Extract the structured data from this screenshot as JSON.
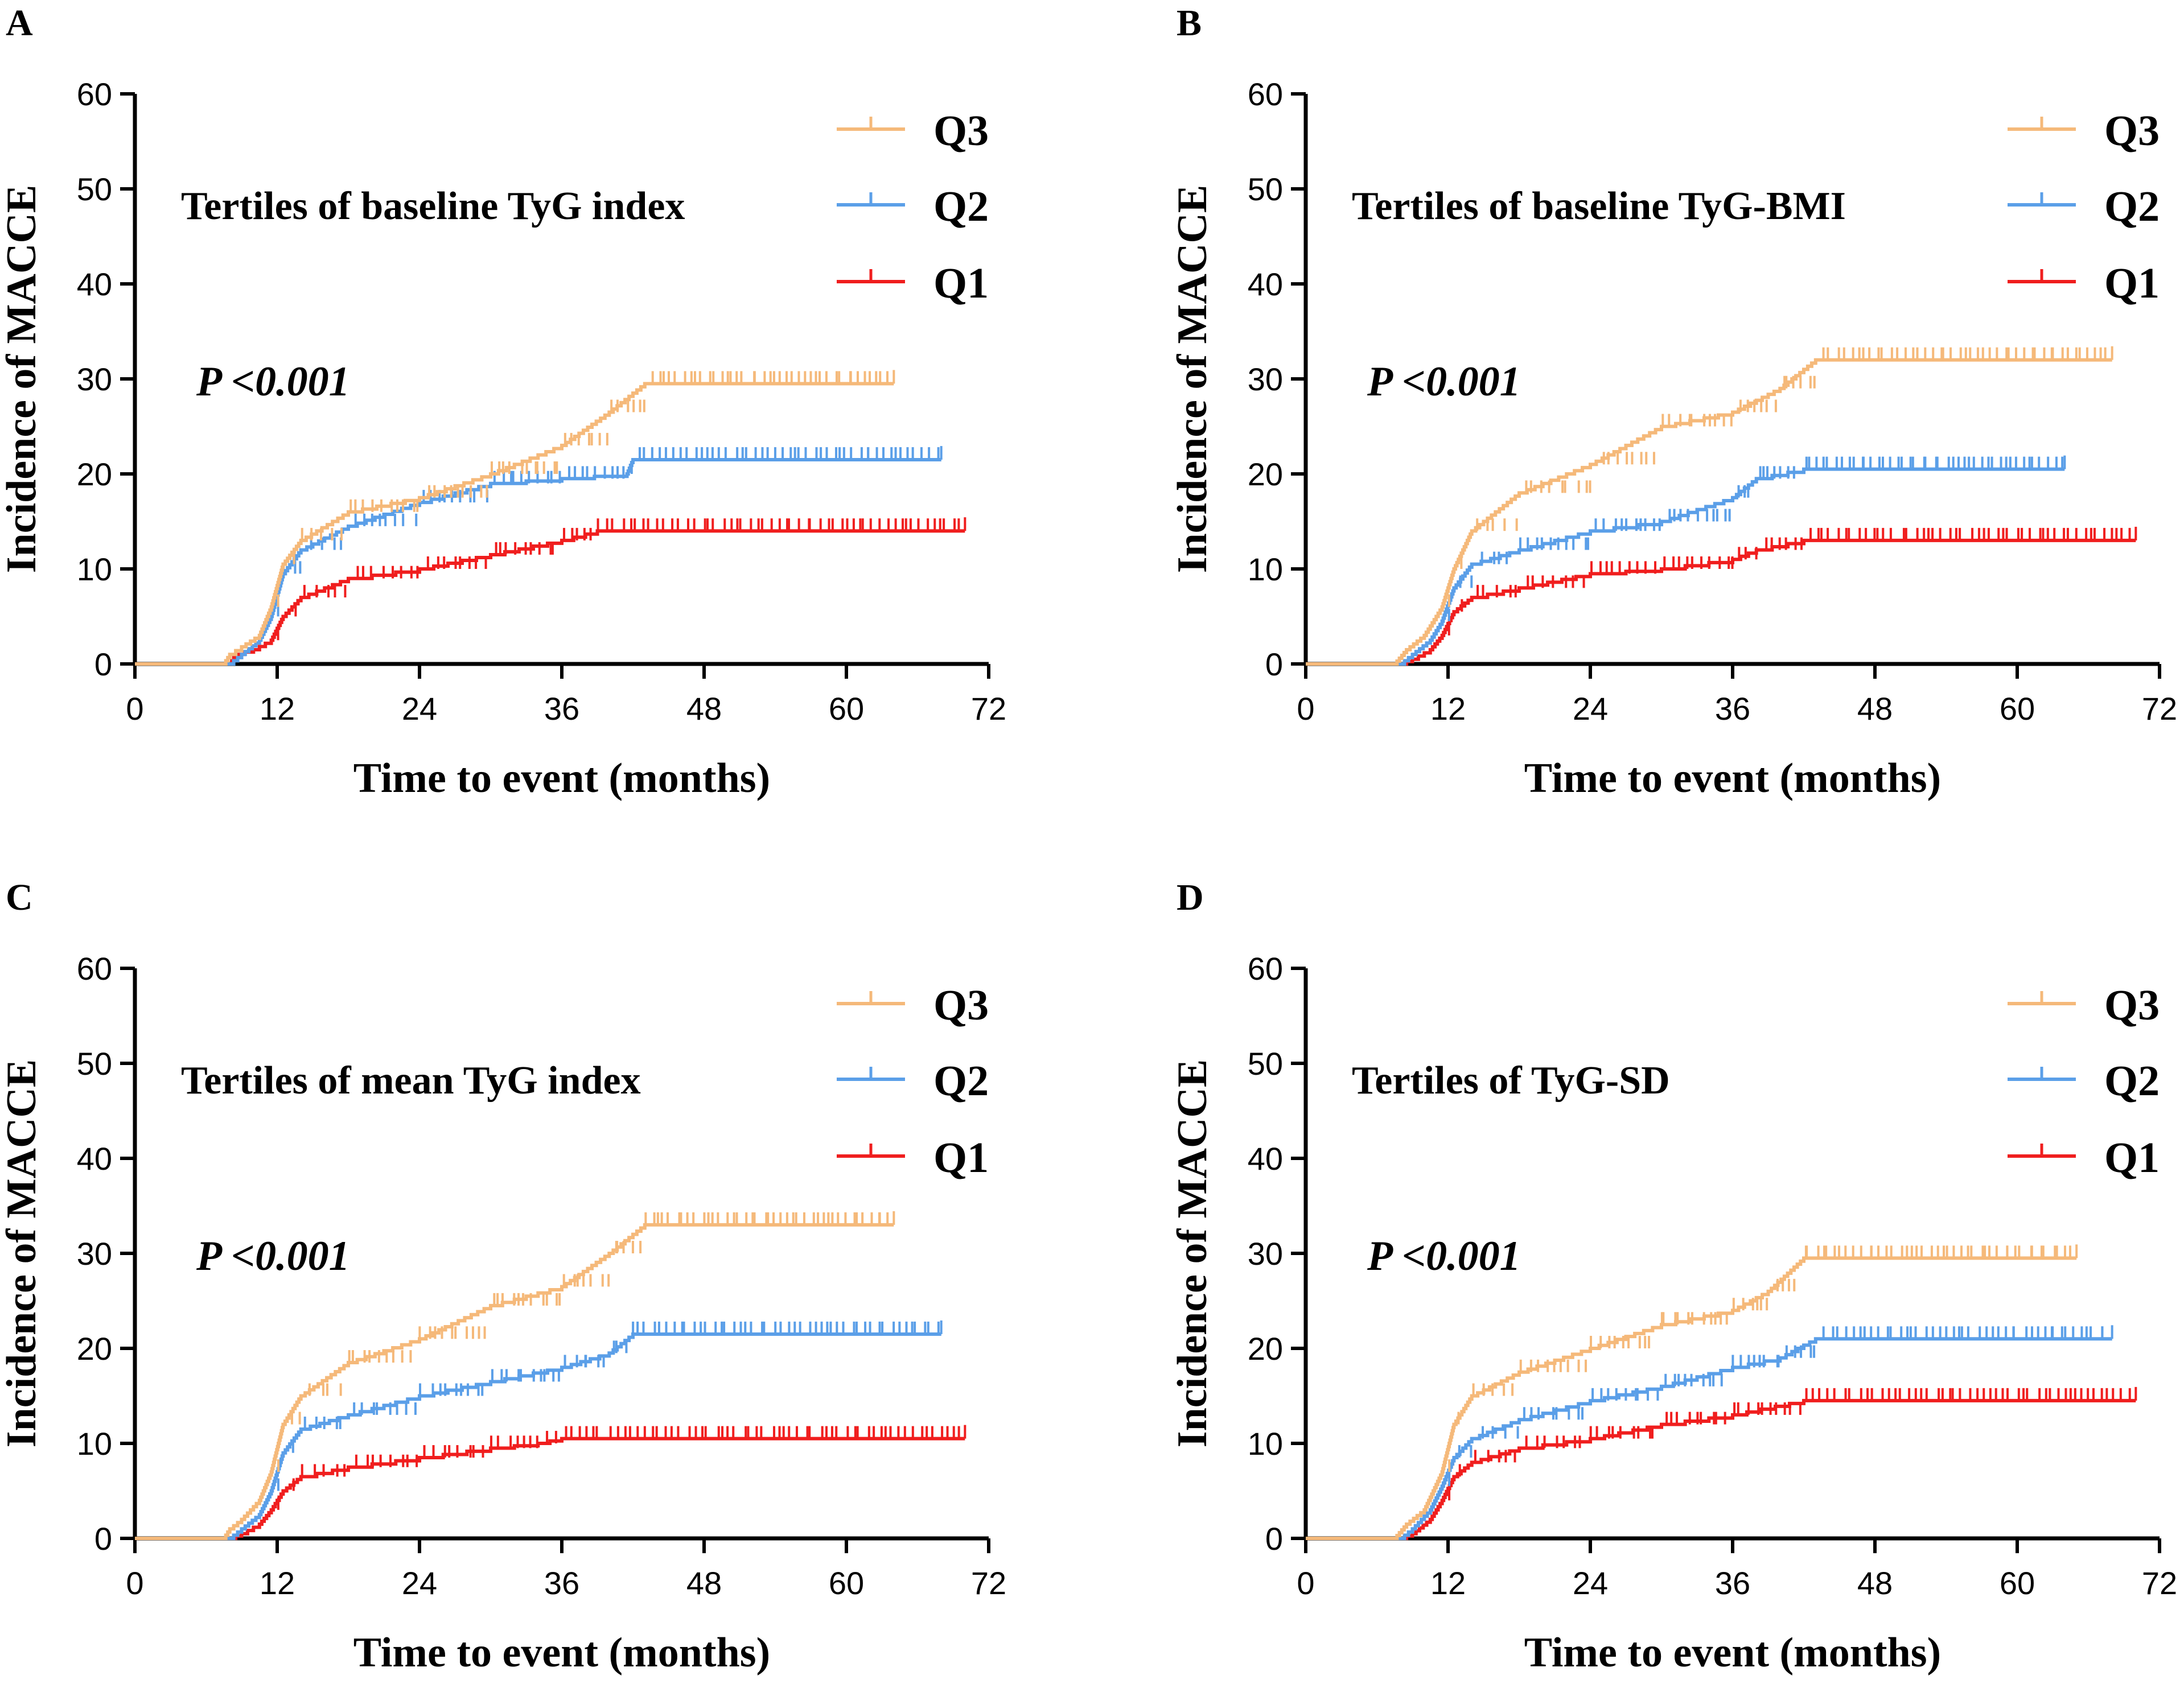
{
  "figure": {
    "y_axis_label": "Incidence of MACCE",
    "x_axis_label": "Time to event (months)"
  },
  "legend": [
    {
      "name": "Q3",
      "color": "#F5B97A"
    },
    {
      "name": "Q2",
      "color": "#5B9FE8"
    },
    {
      "name": "Q1",
      "color": "#F01E1E"
    }
  ],
  "chart_data": [
    {
      "panel": "A",
      "type": "line",
      "title": "Tertiles of baseline TyG index",
      "annotation": "P <0.001",
      "xlabel": "Time to event (months)",
      "ylabel": "Incidence of MACCE",
      "xlim": [
        0,
        72
      ],
      "ylim": [
        0,
        60
      ],
      "xticks": [
        0,
        12,
        24,
        36,
        48,
        60,
        72
      ],
      "yticks": [
        0,
        10,
        20,
        30,
        40,
        50,
        60
      ],
      "series": [
        {
          "name": "Q3",
          "color": "#F5B97A",
          "end": 64,
          "points": [
            [
              0,
              0
            ],
            [
              7.5,
              0
            ],
            [
              8,
              1
            ],
            [
              9,
              1.8
            ],
            [
              10.5,
              3
            ],
            [
              11.5,
              6
            ],
            [
              12.5,
              10.5
            ],
            [
              14,
              13
            ],
            [
              18,
              16
            ],
            [
              24,
              17.5
            ],
            [
              30,
              20
            ],
            [
              36,
              23
            ],
            [
              40,
              26.5
            ],
            [
              43,
              29.5
            ],
            [
              64,
              29.5
            ]
          ]
        },
        {
          "name": "Q2",
          "color": "#5B9FE8",
          "end": 68,
          "points": [
            [
              0,
              0
            ],
            [
              8,
              0
            ],
            [
              9,
              1
            ],
            [
              10.5,
              2.5
            ],
            [
              11.5,
              5
            ],
            [
              12.5,
              9.5
            ],
            [
              14,
              12
            ],
            [
              18,
              14.5
            ],
            [
              24,
              17
            ],
            [
              30,
              19
            ],
            [
              36,
              19.5
            ],
            [
              41.5,
              20
            ],
            [
              42,
              21.5
            ],
            [
              68,
              21.5
            ]
          ]
        },
        {
          "name": "Q1",
          "color": "#F01E1E",
          "end": 70,
          "points": [
            [
              0,
              0
            ],
            [
              8,
              0
            ],
            [
              8.5,
              1
            ],
            [
              10,
              1.5
            ],
            [
              11.5,
              2.5
            ],
            [
              12.5,
              5
            ],
            [
              14,
              7
            ],
            [
              18,
              9
            ],
            [
              24,
              10
            ],
            [
              30,
              11.5
            ],
            [
              36,
              13
            ],
            [
              39,
              14
            ],
            [
              70,
              14
            ]
          ]
        }
      ]
    },
    {
      "panel": "B",
      "type": "line",
      "title": "Tertiles of baseline TyG-BMI",
      "annotation": "P <0.001",
      "xlabel": "Time to event (months)",
      "ylabel": "Incidence of MACCE",
      "xlim": [
        0,
        72
      ],
      "ylim": [
        0,
        60
      ],
      "xticks": [
        0,
        12,
        24,
        36,
        48,
        60,
        72
      ],
      "yticks": [
        0,
        10,
        20,
        30,
        40,
        50,
        60
      ],
      "series": [
        {
          "name": "Q3",
          "color": "#F5B97A",
          "end": 68,
          "points": [
            [
              0,
              0
            ],
            [
              7.5,
              0
            ],
            [
              8.5,
              1.5
            ],
            [
              10,
              3
            ],
            [
              11.5,
              6
            ],
            [
              12.5,
              10
            ],
            [
              14,
              14
            ],
            [
              18,
              18
            ],
            [
              24,
              21
            ],
            [
              30,
              25
            ],
            [
              36,
              26.5
            ],
            [
              40,
              29
            ],
            [
              43,
              32
            ],
            [
              68,
              32
            ]
          ]
        },
        {
          "name": "Q2",
          "color": "#5B9FE8",
          "end": 64,
          "points": [
            [
              0,
              0
            ],
            [
              8,
              0
            ],
            [
              9,
              1
            ],
            [
              10.5,
              2.5
            ],
            [
              11.5,
              4.5
            ],
            [
              12.5,
              8
            ],
            [
              14,
              10.5
            ],
            [
              18,
              12
            ],
            [
              24,
              14
            ],
            [
              30,
              15
            ],
            [
              36,
              17.5
            ],
            [
              38,
              19.5
            ],
            [
              42,
              20.5
            ],
            [
              64,
              20.5
            ]
          ]
        },
        {
          "name": "Q1",
          "color": "#F01E1E",
          "end": 70,
          "points": [
            [
              0,
              0
            ],
            [
              8,
              0
            ],
            [
              9,
              0.5
            ],
            [
              10.5,
              1.5
            ],
            [
              11.5,
              3
            ],
            [
              12.5,
              5.5
            ],
            [
              14,
              7
            ],
            [
              18,
              8
            ],
            [
              24,
              9.5
            ],
            [
              30,
              10
            ],
            [
              36,
              11
            ],
            [
              38,
              12
            ],
            [
              42,
              13
            ],
            [
              70,
              13
            ]
          ]
        }
      ]
    },
    {
      "panel": "C",
      "type": "line",
      "title": "Tertiles of mean TyG index",
      "annotation": "P <0.001",
      "xlabel": "Time to event (months)",
      "ylabel": "Incidence of MACCE",
      "xlim": [
        0,
        72
      ],
      "ylim": [
        0,
        60
      ],
      "xticks": [
        0,
        12,
        24,
        36,
        48,
        60,
        72
      ],
      "yticks": [
        0,
        10,
        20,
        30,
        40,
        50,
        60
      ],
      "series": [
        {
          "name": "Q3",
          "color": "#F5B97A",
          "end": 64,
          "points": [
            [
              0,
              0
            ],
            [
              7.5,
              0
            ],
            [
              8,
              1
            ],
            [
              9,
              2
            ],
            [
              10.5,
              4
            ],
            [
              11.5,
              7
            ],
            [
              12.5,
              12
            ],
            [
              14,
              15
            ],
            [
              18,
              18.5
            ],
            [
              24,
              21
            ],
            [
              30,
              24.5
            ],
            [
              36,
              26.5
            ],
            [
              40,
              30
            ],
            [
              43,
              33
            ],
            [
              64,
              33
            ]
          ]
        },
        {
          "name": "Q2",
          "color": "#5B9FE8",
          "end": 68,
          "points": [
            [
              0,
              0
            ],
            [
              8,
              0
            ],
            [
              9,
              1
            ],
            [
              10.5,
              2.5
            ],
            [
              11.5,
              5
            ],
            [
              12.5,
              9
            ],
            [
              14,
              11.5
            ],
            [
              18,
              13
            ],
            [
              24,
              15
            ],
            [
              30,
              16.5
            ],
            [
              36,
              18
            ],
            [
              40,
              19.5
            ],
            [
              42,
              21.5
            ],
            [
              68,
              21.5
            ]
          ]
        },
        {
          "name": "Q1",
          "color": "#F01E1E",
          "end": 70,
          "points": [
            [
              0,
              0
            ],
            [
              8,
              0
            ],
            [
              9,
              0.5
            ],
            [
              10.5,
              1.5
            ],
            [
              11.5,
              3
            ],
            [
              12.5,
              5
            ],
            [
              14,
              6.5
            ],
            [
              18,
              7.5
            ],
            [
              24,
              8.5
            ],
            [
              30,
              9.5
            ],
            [
              34,
              10
            ],
            [
              36,
              10.5
            ],
            [
              70,
              10.5
            ]
          ]
        }
      ]
    },
    {
      "panel": "D",
      "type": "line",
      "title": "Tertiles of TyG-SD",
      "annotation": "P <0.001",
      "xlabel": "Time to event (months)",
      "ylabel": "Incidence of MACCE",
      "xlim": [
        0,
        72
      ],
      "ylim": [
        0,
        60
      ],
      "xticks": [
        0,
        12,
        24,
        36,
        48,
        60,
        72
      ],
      "yticks": [
        0,
        10,
        20,
        30,
        40,
        50,
        60
      ],
      "series": [
        {
          "name": "Q3",
          "color": "#F5B97A",
          "end": 65,
          "points": [
            [
              0,
              0
            ],
            [
              7.5,
              0
            ],
            [
              8.5,
              1.5
            ],
            [
              10,
              3
            ],
            [
              11.5,
              7
            ],
            [
              12.5,
              12
            ],
            [
              14,
              15
            ],
            [
              18,
              17.5
            ],
            [
              24,
              20
            ],
            [
              30,
              22.5
            ],
            [
              36,
              24
            ],
            [
              39,
              26
            ],
            [
              42,
              29.5
            ],
            [
              65,
              29.5
            ]
          ]
        },
        {
          "name": "Q2",
          "color": "#5B9FE8",
          "end": 68,
          "points": [
            [
              0,
              0
            ],
            [
              8,
              0
            ],
            [
              9,
              1
            ],
            [
              10.5,
              3
            ],
            [
              11.5,
              5.5
            ],
            [
              12.5,
              8.5
            ],
            [
              14,
              10.5
            ],
            [
              18,
              12.5
            ],
            [
              24,
              14.5
            ],
            [
              30,
              16
            ],
            [
              36,
              18
            ],
            [
              40,
              19
            ],
            [
              43,
              21
            ],
            [
              68,
              21
            ]
          ]
        },
        {
          "name": "Q1",
          "color": "#F01E1E",
          "end": 70,
          "points": [
            [
              0,
              0
            ],
            [
              8,
              0
            ],
            [
              9,
              0.5
            ],
            [
              10.5,
              2
            ],
            [
              11.5,
              4
            ],
            [
              12.5,
              6.5
            ],
            [
              14,
              8
            ],
            [
              18,
              9.5
            ],
            [
              24,
              10.5
            ],
            [
              30,
              12
            ],
            [
              36,
              13
            ],
            [
              42,
              14.5
            ],
            [
              70,
              14.5
            ]
          ]
        }
      ]
    }
  ]
}
